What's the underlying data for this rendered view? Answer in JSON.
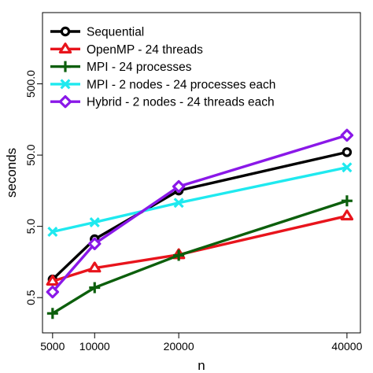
{
  "chart_data": {
    "type": "line",
    "title": "",
    "xlabel": "n",
    "ylabel": "seconds",
    "x": [
      5000,
      10000,
      20000,
      40000
    ],
    "x_ticks": [
      "5000",
      "10000",
      "20000",
      "40000"
    ],
    "y_scale": "log",
    "y_ticks": [
      "0.5",
      "5.0",
      "50.0",
      "500.0"
    ],
    "y_tick_values": [
      0.5,
      5.0,
      50.0,
      500.0
    ],
    "xlim": [
      3800,
      41600
    ],
    "ylim": [
      0.16,
      5000
    ],
    "grid": false,
    "legend_position": "top-left",
    "series": [
      {
        "name": "Sequential",
        "color": "#000000",
        "marker": "circle",
        "values": [
          0.9,
          3.3,
          15.9,
          55.0
        ]
      },
      {
        "name": "OpenMP - 24 threads",
        "color": "#e8141c",
        "marker": "triangle",
        "values": [
          0.85,
          1.3,
          2.0,
          7.0
        ]
      },
      {
        "name": "MPI - 24 processes",
        "color": "#0c5f0c",
        "marker": "plus",
        "values": [
          0.3,
          0.69,
          1.96,
          11.4
        ]
      },
      {
        "name": "MPI - 2 nodes - 24 processes each",
        "color": "#1fe9ef",
        "marker": "cross",
        "values": [
          4.2,
          5.7,
          10.7,
          33.6
        ]
      },
      {
        "name": "Hybrid - 2 nodes - 24 threads each",
        "color": "#8a18e8",
        "marker": "diamond",
        "values": [
          0.6,
          2.85,
          18.1,
          95.0
        ]
      }
    ]
  }
}
